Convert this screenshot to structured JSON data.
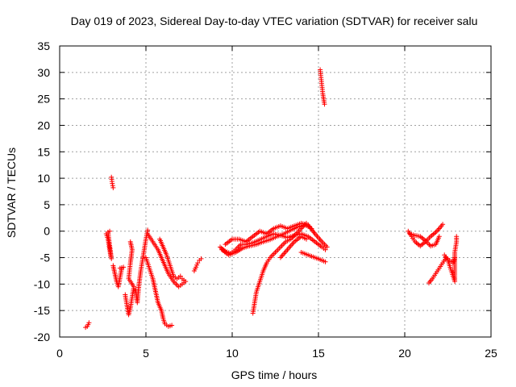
{
  "chart_data": {
    "type": "scatter",
    "title": "Day 019 of 2023, Sidereal Day-to-day VTEC variation (SDTVAR) for receiver salu",
    "xlabel": "GPS time / hours",
    "ylabel": "SDTVAR / TECUs",
    "xlim": [
      0,
      25
    ],
    "ylim": [
      -20,
      35
    ],
    "xticks": [
      0,
      5,
      10,
      15,
      20,
      25
    ],
    "yticks": [
      -20,
      -15,
      -10,
      -5,
      0,
      5,
      10,
      15,
      20,
      25,
      30,
      35
    ],
    "grid": true,
    "marker": "+",
    "series": [
      {
        "name": "SDTVAR",
        "color": "#ff0000",
        "segments": [
          [
            [
              1.5,
              -18.2
            ],
            [
              1.6,
              -18.0
            ],
            [
              1.7,
              -17.3
            ]
          ],
          [
            [
              2.7,
              -0.5
            ],
            [
              2.8,
              -1.5
            ],
            [
              2.85,
              -2.5
            ],
            [
              2.9,
              -3.5
            ],
            [
              2.95,
              -4.5
            ],
            [
              3.0,
              -5.2
            ],
            [
              2.8,
              -0.2
            ],
            [
              2.9,
              0.0
            ]
          ],
          [
            [
              3.0,
              10.2
            ],
            [
              3.05,
              9.0
            ],
            [
              3.1,
              8.2
            ]
          ],
          [
            [
              3.1,
              -6.5
            ],
            [
              3.2,
              -8.0
            ],
            [
              3.3,
              -9.5
            ],
            [
              3.4,
              -10.5
            ],
            [
              3.6,
              -7.0
            ],
            [
              3.7,
              -6.8
            ],
            [
              3.5,
              -7.0
            ]
          ],
          [
            [
              3.8,
              -12.0
            ],
            [
              3.9,
              -14.0
            ],
            [
              4.0,
              -15.8
            ],
            [
              4.1,
              -14.5
            ],
            [
              4.2,
              -12.5
            ],
            [
              4.3,
              -10.5
            ],
            [
              4.0,
              -9.0
            ],
            [
              4.1,
              -6.0
            ],
            [
              4.2,
              -3.5
            ],
            [
              4.1,
              -2.0
            ]
          ],
          [
            [
              4.4,
              -11.0
            ],
            [
              4.5,
              -13.5
            ],
            [
              4.6,
              -10.0
            ],
            [
              4.7,
              -7.5
            ],
            [
              4.8,
              -5.5
            ],
            [
              4.9,
              -3.5
            ],
            [
              5.0,
              -1.5
            ],
            [
              5.1,
              0.2
            ]
          ],
          [
            [
              5.0,
              -5.0
            ],
            [
              5.2,
              -7.0
            ],
            [
              5.4,
              -9.0
            ],
            [
              5.5,
              -10.5
            ],
            [
              5.6,
              -12.0
            ],
            [
              5.7,
              -13.5
            ],
            [
              5.9,
              -15.0
            ],
            [
              6.0,
              -16.5
            ],
            [
              6.1,
              -17.5
            ],
            [
              6.3,
              -18.0
            ],
            [
              6.5,
              -17.8
            ]
          ],
          [
            [
              5.1,
              -0.5
            ],
            [
              5.4,
              -2.0
            ],
            [
              5.7,
              -3.5
            ],
            [
              5.9,
              -5.0
            ],
            [
              6.1,
              -6.5
            ],
            [
              6.3,
              -8.0
            ],
            [
              6.6,
              -9.5
            ],
            [
              6.9,
              -10.5
            ],
            [
              7.1,
              -10.0
            ],
            [
              7.3,
              -9.5
            ],
            [
              7.1,
              -9.0
            ]
          ],
          [
            [
              5.8,
              -1.5
            ],
            [
              6.0,
              -3.0
            ],
            [
              6.2,
              -4.5
            ],
            [
              6.4,
              -6.5
            ],
            [
              6.6,
              -8.5
            ],
            [
              6.8,
              -9.0
            ],
            [
              7.0,
              -8.5
            ]
          ],
          [
            [
              7.8,
              -7.5
            ],
            [
              7.9,
              -6.8
            ],
            [
              8.0,
              -6.0
            ],
            [
              8.1,
              -5.5
            ],
            [
              8.2,
              -5.2
            ]
          ],
          [
            [
              9.3,
              -3.0
            ],
            [
              9.6,
              -3.8
            ],
            [
              9.9,
              -4.2
            ],
            [
              10.2,
              -3.5
            ],
            [
              10.5,
              -2.5
            ],
            [
              10.8,
              -2.5
            ],
            [
              11.2,
              -2.2
            ],
            [
              11.6,
              -1.6
            ],
            [
              12.0,
              -1.0
            ],
            [
              12.4,
              -0.5
            ],
            [
              12.8,
              -0.8
            ],
            [
              13.2,
              -1.2
            ],
            [
              13.6,
              -0.8
            ],
            [
              14.0,
              -0.5
            ],
            [
              14.4,
              -1.0
            ],
            [
              14.8,
              -2.0
            ],
            [
              15.2,
              -3.0
            ],
            [
              15.4,
              -3.5
            ]
          ],
          [
            [
              9.4,
              -3.5
            ],
            [
              9.8,
              -4.5
            ],
            [
              10.2,
              -4.0
            ],
            [
              10.6,
              -3.2
            ],
            [
              11.0,
              -2.8
            ],
            [
              11.4,
              -2.5
            ],
            [
              11.8,
              -2.0
            ],
            [
              12.2,
              -1.6
            ],
            [
              12.6,
              -1.0
            ],
            [
              13.0,
              -0.5
            ],
            [
              13.4,
              0.2
            ],
            [
              13.8,
              0.8
            ],
            [
              14.2,
              1.2
            ],
            [
              14.6,
              0.5
            ]
          ],
          [
            [
              9.6,
              -2.5
            ],
            [
              10.0,
              -1.5
            ],
            [
              10.4,
              -1.5
            ],
            [
              10.8,
              -2.0
            ],
            [
              11.2,
              -1.0
            ],
            [
              11.6,
              0.0
            ],
            [
              12.0,
              -0.5
            ],
            [
              12.4,
              0.5
            ],
            [
              12.8,
              1.0
            ],
            [
              13.2,
              0.5
            ],
            [
              13.6,
              1.0
            ],
            [
              14.0,
              1.5
            ],
            [
              14.4,
              1.2
            ],
            [
              14.8,
              -0.5
            ],
            [
              15.2,
              -2.0
            ],
            [
              15.5,
              -3.0
            ]
          ],
          [
            [
              11.2,
              -15.5
            ],
            [
              11.3,
              -13.5
            ],
            [
              11.4,
              -11.5
            ],
            [
              11.6,
              -9.5
            ],
            [
              11.8,
              -7.5
            ],
            [
              12.0,
              -6.0
            ],
            [
              12.2,
              -5.0
            ],
            [
              12.5,
              -4.0
            ],
            [
              12.8,
              -3.0
            ],
            [
              13.1,
              -2.0
            ],
            [
              13.4,
              -1.5
            ],
            [
              13.7,
              -0.5
            ],
            [
              14.0,
              0.5
            ],
            [
              14.3,
              1.5
            ]
          ],
          [
            [
              12.8,
              -5.0
            ],
            [
              13.2,
              -3.5
            ],
            [
              13.6,
              -2.0
            ],
            [
              14.0,
              -1.0
            ],
            [
              14.3,
              -1.5
            ]
          ],
          [
            [
              14.0,
              -4.0
            ],
            [
              14.4,
              -4.5
            ],
            [
              14.8,
              -5.0
            ],
            [
              15.2,
              -5.5
            ],
            [
              15.4,
              -5.8
            ]
          ],
          [
            [
              15.1,
              30.5
            ],
            [
              15.15,
              29.0
            ],
            [
              15.2,
              27.5
            ],
            [
              15.25,
              26.0
            ],
            [
              15.3,
              25.0
            ],
            [
              15.35,
              24.0
            ]
          ],
          [
            [
              20.2,
              0.0
            ],
            [
              20.4,
              -1.0
            ],
            [
              20.6,
              -2.0
            ],
            [
              20.9,
              -2.8
            ],
            [
              21.2,
              -2.0
            ],
            [
              21.5,
              -1.0
            ],
            [
              21.8,
              -0.2
            ],
            [
              22.0,
              0.5
            ],
            [
              22.2,
              1.3
            ]
          ],
          [
            [
              20.3,
              -0.5
            ],
            [
              20.6,
              -0.8
            ],
            [
              20.9,
              -1.0
            ],
            [
              21.2,
              -1.8
            ],
            [
              21.5,
              -2.8
            ],
            [
              21.8,
              -2.5
            ],
            [
              22.0,
              -1.0
            ]
          ],
          [
            [
              21.4,
              -9.8
            ],
            [
              21.6,
              -9.0
            ],
            [
              21.8,
              -8.0
            ],
            [
              22.0,
              -7.0
            ],
            [
              22.2,
              -6.0
            ],
            [
              22.4,
              -5.0
            ],
            [
              22.6,
              -5.5
            ],
            [
              22.8,
              -6.0
            ],
            [
              22.9,
              -5.0
            ]
          ],
          [
            [
              22.3,
              -4.5
            ],
            [
              22.5,
              -5.5
            ],
            [
              22.6,
              -6.5
            ],
            [
              22.7,
              -7.5
            ],
            [
              22.8,
              -8.5
            ],
            [
              22.9,
              -9.5
            ],
            [
              22.9,
              -4.0
            ],
            [
              22.95,
              -3.0
            ],
            [
              23.0,
              -2.0
            ],
            [
              23.0,
              -1.0
            ]
          ]
        ]
      }
    ]
  }
}
